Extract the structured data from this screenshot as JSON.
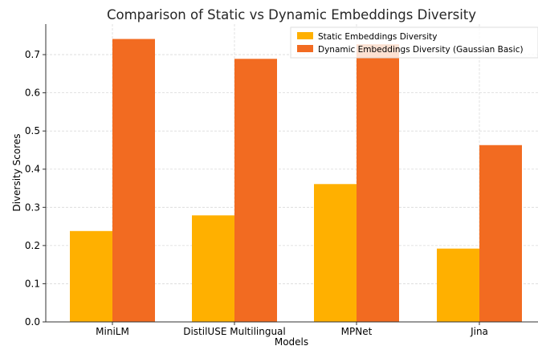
{
  "chart_data": {
    "type": "bar",
    "title": "Comparison of Static vs Dynamic Embeddings Diversity",
    "xlabel": "Models",
    "ylabel": "Diversity Scores",
    "categories": [
      "MiniLM",
      "DistilUSE Multilingual",
      "MPNet",
      "Jina"
    ],
    "series": [
      {
        "name": "Static Embeddings Diversity",
        "color": "#FFB000",
        "values": [
          0.238,
          0.279,
          0.361,
          0.192
        ]
      },
      {
        "name": "Dynamic Embeddings Diversity (Gaussian Basic)",
        "color": "#F26B21",
        "values": [
          0.741,
          0.689,
          0.727,
          0.463
        ]
      }
    ],
    "ylim": [
      0,
      0.78
    ],
    "yticks": [
      0.0,
      0.1,
      0.2,
      0.3,
      0.4,
      0.5,
      0.6,
      0.7
    ],
    "ytick_labels": [
      "0.0",
      "0.1",
      "0.2",
      "0.3",
      "0.4",
      "0.5",
      "0.6",
      "0.7"
    ],
    "grid": true,
    "legend_position": "top-right"
  }
}
